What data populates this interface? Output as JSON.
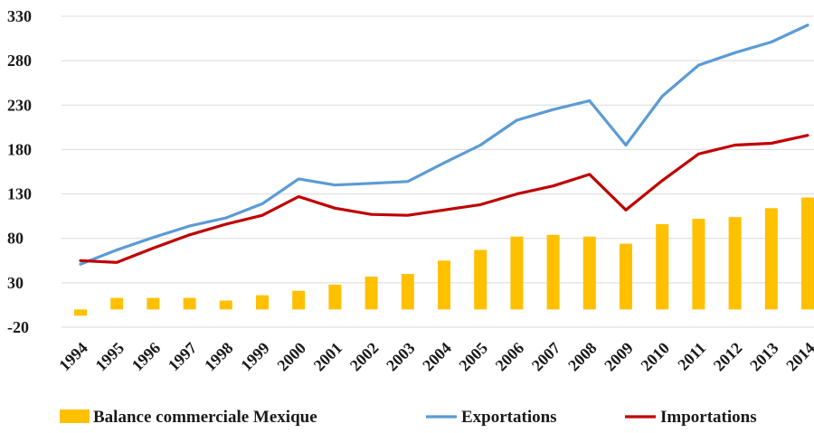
{
  "chart_data": {
    "type": "bar",
    "title": "",
    "xlabel": "",
    "ylabel": "",
    "categories": [
      "1994",
      "1995",
      "1996",
      "1997",
      "1998",
      "1999",
      "2000",
      "2001",
      "2002",
      "2003",
      "2004",
      "2005",
      "2006",
      "2007",
      "2008",
      "2009",
      "2010",
      "2011",
      "2012",
      "2013",
      "2014"
    ],
    "yticks": [
      "-20",
      "30",
      "80",
      "130",
      "180",
      "230",
      "280",
      "330"
    ],
    "ylim": [
      -20,
      330
    ],
    "grid": true,
    "legend_position": "bottom",
    "series": [
      {
        "name": "Balance commerciale Mexique",
        "kind": "bar",
        "color": "#FFC000",
        "values": [
          -7,
          13,
          13,
          13,
          10,
          16,
          21,
          28,
          37,
          40,
          55,
          67,
          82,
          84,
          82,
          74,
          96,
          102,
          104,
          114,
          126
        ]
      },
      {
        "name": "Exportations",
        "kind": "line",
        "color": "#5B9BD5",
        "values": [
          51,
          67,
          81,
          94,
          103,
          119,
          147,
          140,
          142,
          144,
          165,
          185,
          213,
          225,
          235,
          185,
          240,
          275,
          289,
          301,
          320
        ]
      },
      {
        "name": "Importations",
        "kind": "line",
        "color": "#C00000",
        "values": [
          55,
          53,
          69,
          84,
          96,
          106,
          127,
          114,
          107,
          106,
          112,
          118,
          130,
          139,
          152,
          112,
          145,
          175,
          185,
          187,
          196
        ]
      }
    ]
  }
}
